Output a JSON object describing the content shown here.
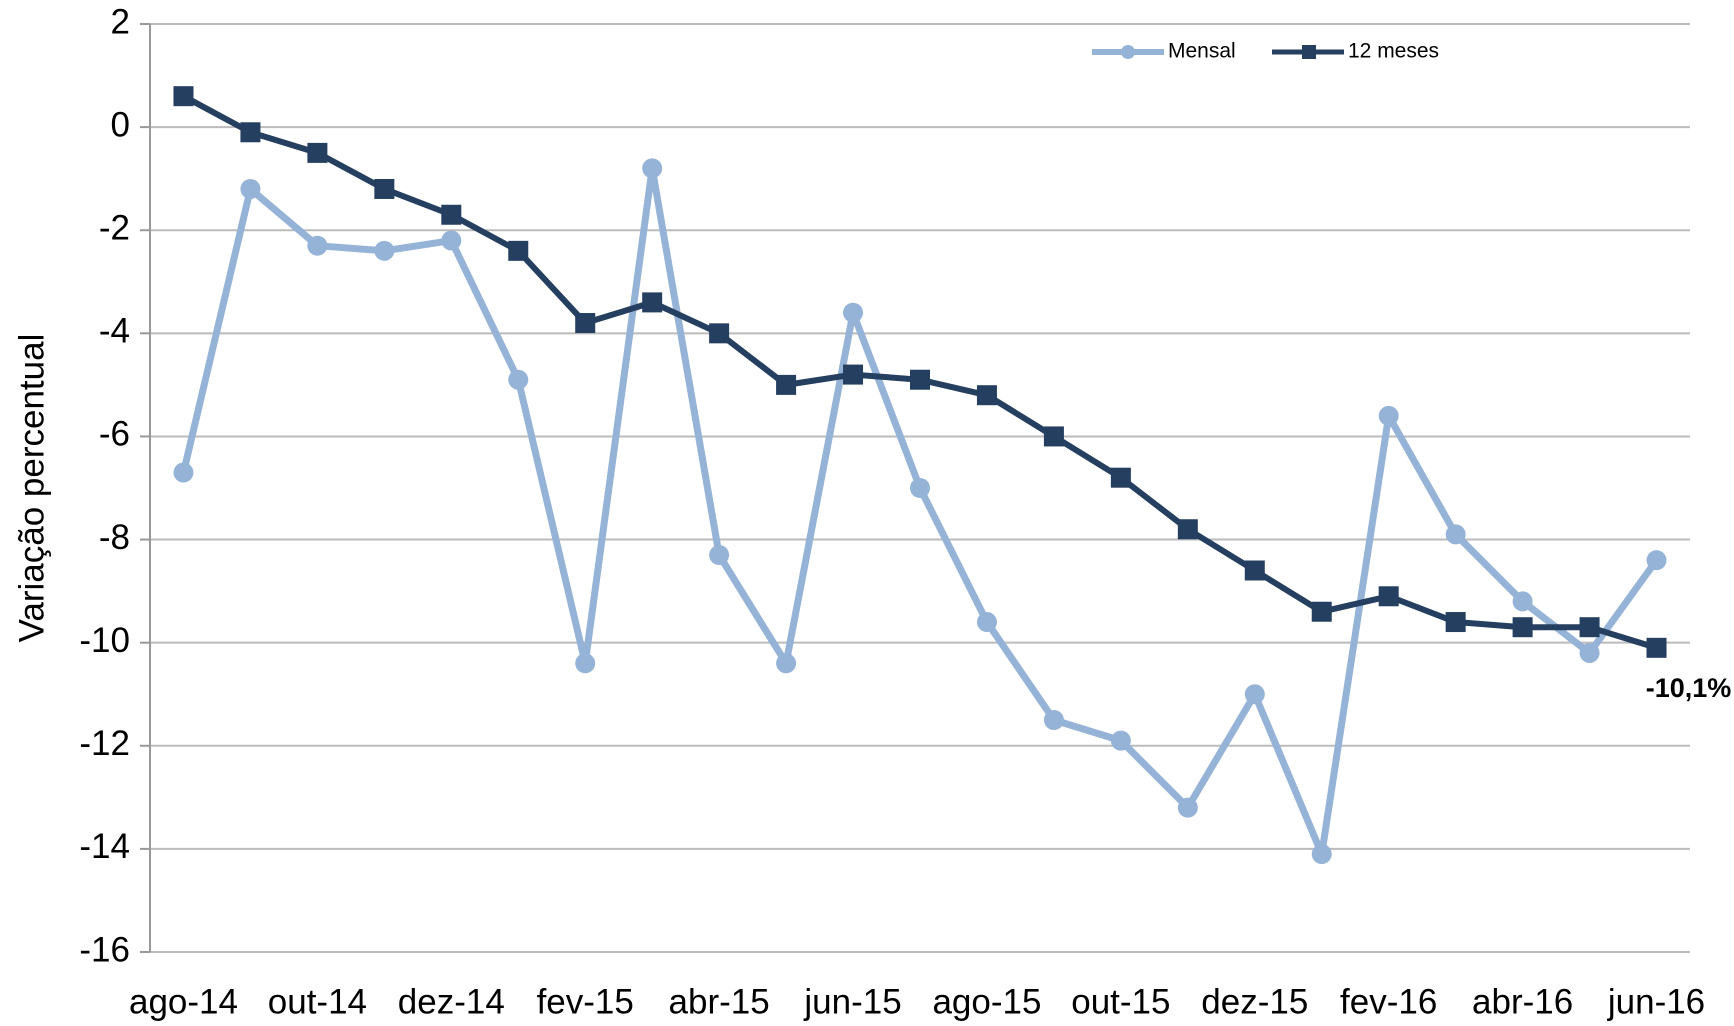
{
  "chart_data": {
    "type": "line",
    "y_label": "Variação percentual",
    "categories": [
      "ago-14",
      null,
      "out-14",
      null,
      "dez-14",
      null,
      "fev-15",
      null,
      "abr-15",
      null,
      "jun-15",
      null,
      "ago-15",
      null,
      "out-15",
      null,
      "dez-15",
      null,
      "fev-16",
      null,
      "abr-16",
      null,
      "jun-16"
    ],
    "series": [
      {
        "name": "Mensal",
        "color": "#95b3d7",
        "marker": "circle",
        "values": [
          -6.7,
          -1.2,
          -2.3,
          -2.4,
          -2.2,
          -4.9,
          -10.4,
          -0.8,
          -8.3,
          -10.4,
          -3.6,
          -7.0,
          -9.6,
          -11.5,
          -11.9,
          -13.2,
          -11.0,
          -14.1,
          -5.6,
          -7.9,
          -9.2,
          -10.2,
          -8.4
        ]
      },
      {
        "name": "12 meses",
        "color": "#243f60",
        "marker": "square",
        "values": [
          0.6,
          -0.1,
          -0.5,
          -1.2,
          -1.7,
          -2.4,
          -3.8,
          -3.4,
          -4.0,
          -5.0,
          -4.8,
          -4.9,
          -5.2,
          -6.0,
          -6.8,
          -7.8,
          -8.6,
          -9.4,
          -9.1,
          -9.6,
          -9.7,
          -9.7,
          -10.1
        ],
        "value_labels": [
          null,
          null,
          null,
          null,
          null,
          null,
          null,
          null,
          null,
          null,
          null,
          null,
          null,
          null,
          null,
          null,
          null,
          null,
          null,
          null,
          null,
          null,
          "-10,1%"
        ]
      }
    ],
    "ylim": [
      -16,
      2
    ],
    "yticks": [
      -16,
      -14,
      -12,
      -10,
      -8,
      -6,
      -4,
      -2,
      0,
      2
    ],
    "grid": true,
    "legend": "top-right"
  }
}
